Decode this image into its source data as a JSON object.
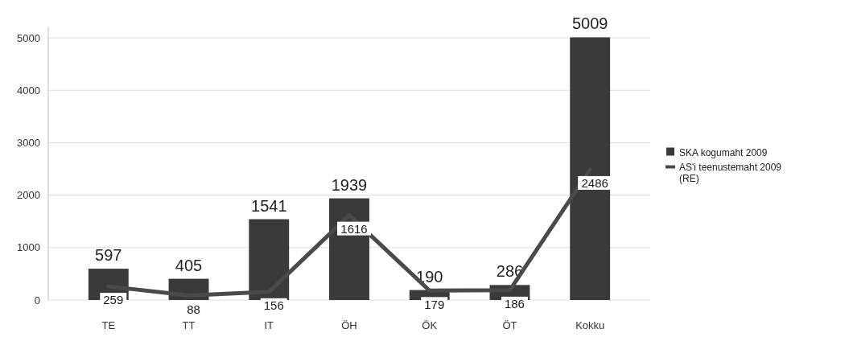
{
  "chart_data": {
    "type": "bar",
    "categories": [
      "TE",
      "TT",
      "IT",
      "ÖH",
      "ÖK",
      "ÖT",
      "Kokku"
    ],
    "series": [
      {
        "name": "SKA kogumaht 2009",
        "color": "#3a3a3a",
        "values": [
          597,
          405,
          1541,
          1939,
          190,
          286,
          5009
        ],
        "value_labels": [
          "597",
          "405",
          "1541",
          "1939",
          "190",
          "286",
          "5009"
        ]
      },
      {
        "name": "AS'i teenustemaht 2009 (RE)",
        "type": "line",
        "color": "#4a4a4a",
        "values": [
          259,
          88,
          156,
          1616,
          179,
          186,
          2486
        ],
        "value_labels": [
          "259",
          "88",
          "156",
          "1616",
          "179",
          "186",
          "2486"
        ]
      }
    ],
    "ylim": [
      0,
      5200
    ],
    "yticks": [
      0,
      1000,
      2000,
      3000,
      4000,
      5000
    ],
    "grid": "y",
    "legend": "right"
  }
}
